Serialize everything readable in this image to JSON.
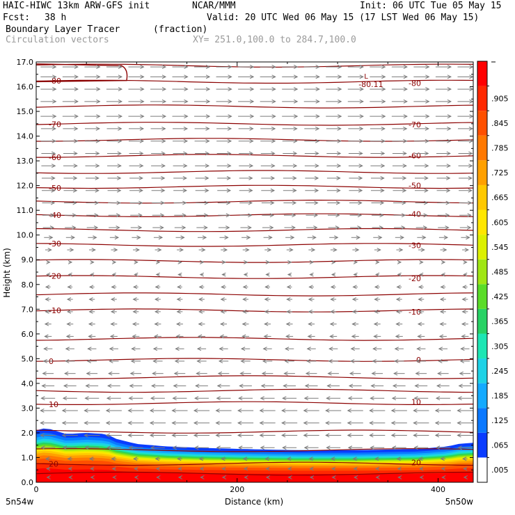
{
  "header": {
    "model": "HAIC-HIWC 13km ARW-GFS init",
    "org": "NCAR/MMM",
    "init": "Init: 06 UTC Tue 05 May 15",
    "fcst_label": "Fcst:",
    "fcst_value": "38 h",
    "valid": "Valid: 20 UTC Wed 06 May 15 (17 LST Wed 06 May 15)",
    "field": "Boundary Layer Tracer",
    "field_unit": "(fraction)",
    "vectors": "Circulation vectors",
    "xy": "XY= 251.0,100.0 to 284.7,100.0"
  },
  "colors": {
    "contour": "#8b0000",
    "vector": "#7a7a7a"
  },
  "chart_data": {
    "type": "heatmap",
    "xlabel": "Distance (km)",
    "ylabel": "Height (km)",
    "xlim": [
      0,
      435
    ],
    "ylim": [
      0,
      17
    ],
    "x_ticks": [
      0,
      200,
      400
    ],
    "x_tick_labels": [
      "0",
      "200",
      "400"
    ],
    "y_ticks": [
      0,
      1,
      2,
      3,
      4,
      5,
      6,
      7,
      8,
      9,
      10,
      11,
      12,
      13,
      14,
      15,
      16,
      17
    ],
    "y_tick_labels": [
      "0.0",
      "1.0",
      "2.0",
      "3.0",
      "4.0",
      "5.0",
      "6.0",
      "7.0",
      "8.0",
      "9.0",
      "10.0",
      "11.0",
      "12.0",
      "13.0",
      "14.0",
      "15.0",
      "16.0",
      "17.0"
    ],
    "x_end_labels": [
      "5n54w",
      "5n50w"
    ],
    "colorbar": {
      "labels": [
        ".005",
        ".065",
        ".125",
        ".185",
        ".245",
        ".305",
        ".365",
        ".425",
        ".485",
        ".545",
        ".605",
        ".665",
        ".725",
        ".785",
        ".845",
        ".905"
      ],
      "colors": [
        "#ffffff",
        "#0a3cff",
        "#0a78ff",
        "#14aaff",
        "#1ed2e6",
        "#1ee6b4",
        "#28d264",
        "#5adc28",
        "#a0e614",
        "#dcf000",
        "#ffe600",
        "#ffc800",
        "#ffa000",
        "#ff7800",
        "#ff5000",
        "#ff2800",
        "#ff0000"
      ]
    },
    "tracer_top": [
      {
        "x": 0,
        "y": 2.1
      },
      {
        "x": 10,
        "y": 2.2
      },
      {
        "x": 30,
        "y": 1.95
      },
      {
        "x": 50,
        "y": 2.0
      },
      {
        "x": 70,
        "y": 1.95
      },
      {
        "x": 80,
        "y": 1.75
      },
      {
        "x": 100,
        "y": 1.55
      },
      {
        "x": 130,
        "y": 1.45
      },
      {
        "x": 160,
        "y": 1.4
      },
      {
        "x": 200,
        "y": 1.35
      },
      {
        "x": 260,
        "y": 1.3
      },
      {
        "x": 320,
        "y": 1.3
      },
      {
        "x": 380,
        "y": 1.35
      },
      {
        "x": 410,
        "y": 1.45
      },
      {
        "x": 420,
        "y": 1.55
      },
      {
        "x": 435,
        "y": 1.6
      }
    ],
    "contours": [
      {
        "label": "20",
        "y": 0.75
      },
      {
        "label": "10",
        "y": 3.2
      },
      {
        "label": "0",
        "y": 4.95
      },
      {
        "label": "-10",
        "y": 6.95
      },
      {
        "label": "-20",
        "y": 8.3
      },
      {
        "label": "-30",
        "y": 9.6
      },
      {
        "label": "-40",
        "y": 10.8
      },
      {
        "label": "-50",
        "y": 11.95
      },
      {
        "label": "-60",
        "y": 13.2
      },
      {
        "label": "-70",
        "y": 14.5
      },
      {
        "label": "-80",
        "y": 16.2
      }
    ],
    "extra_contours": [
      0.35,
      1.3,
      2.05,
      3.7,
      4.25,
      5.8,
      7.6,
      8.95,
      10.2,
      11.35,
      12.55,
      13.85,
      15.2,
      16.85
    ],
    "min_label": {
      "text": "-80.11",
      "marker": "L",
      "x": 325,
      "y": 16.3
    },
    "vector_rows": [
      {
        "y": 16.8,
        "u": 1.0
      },
      {
        "y": 16.4,
        "u": 1.0
      },
      {
        "y": 15.9,
        "u": 1.0
      },
      {
        "y": 15.4,
        "u": 1.0
      },
      {
        "y": 14.8,
        "u": 1.0
      },
      {
        "y": 14.3,
        "u": 0.95
      },
      {
        "y": 13.8,
        "u": 0.95
      },
      {
        "y": 13.3,
        "u": 0.9
      },
      {
        "y": 12.8,
        "u": 0.9
      },
      {
        "y": 12.3,
        "u": 0.85
      },
      {
        "y": 11.8,
        "u": 0.85
      },
      {
        "y": 11.3,
        "u": 0.8
      },
      {
        "y": 10.8,
        "u": 0.75
      },
      {
        "y": 10.3,
        "u": 0.7
      },
      {
        "y": 9.9,
        "u": 0.55
      },
      {
        "y": 9.4,
        "u": 0.4
      },
      {
        "y": 8.9,
        "u": 0.2
      },
      {
        "y": 8.4,
        "u": -0.2
      },
      {
        "y": 7.9,
        "u": -0.3
      },
      {
        "y": 7.4,
        "u": -0.35
      },
      {
        "y": 6.9,
        "u": -0.35
      },
      {
        "y": 6.4,
        "u": -0.4
      },
      {
        "y": 5.9,
        "u": -0.45
      },
      {
        "y": 5.4,
        "u": -0.55
      },
      {
        "y": 4.9,
        "u": -0.6
      },
      {
        "y": 4.4,
        "u": -0.7
      },
      {
        "y": 3.9,
        "u": -0.8
      },
      {
        "y": 3.4,
        "u": -0.9
      },
      {
        "y": 2.9,
        "u": -1.0
      },
      {
        "y": 2.4,
        "u": -1.0
      },
      {
        "y": 1.9,
        "u": -1.0
      },
      {
        "y": 1.4,
        "u": -0.9
      },
      {
        "y": 0.95,
        "u": -0.3
      },
      {
        "y": 0.55,
        "u": -0.2
      },
      {
        "y": 0.2,
        "u": -0.15
      }
    ]
  }
}
